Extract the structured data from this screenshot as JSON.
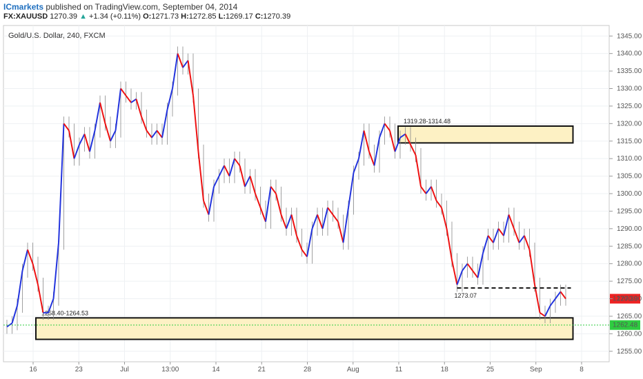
{
  "header": {
    "brand": "ICmarkets",
    "published": "published on TradingView.com, September 04, 2014",
    "symbol": "FX:XAUUSD",
    "last": "1270.39",
    "change": "+1.34 (+0.11%)",
    "o_label": "O:",
    "o_val": "1271.73",
    "h_label": "H:",
    "h_val": "1272.85",
    "l_label": "L:",
    "l_val": "1269.17",
    "c_label": "C:",
    "c_val": "1270.39"
  },
  "colors": {
    "up": "#2233dd",
    "down": "#ee1111",
    "zone_fill": "#fdf1c4",
    "price_tag": "#ee2222",
    "green_tag": "#2ecc40",
    "grid": "#eef0f3"
  },
  "chart_data": {
    "type": "line",
    "title": "Gold/U.S. Dollar, 240, FXCM",
    "x_tick_labels": [
      "16",
      "23",
      "Jul",
      "13:00",
      "14",
      "21",
      "28",
      "Aug",
      "11",
      "18",
      "25",
      "Sep",
      "8"
    ],
    "y_ticks": [
      1255,
      1260,
      1265,
      1270,
      1275,
      1280,
      1285,
      1290,
      1295,
      1300,
      1305,
      1310,
      1315,
      1320,
      1325,
      1330,
      1335,
      1340,
      1345
    ],
    "ylim": [
      1252,
      1348
    ],
    "series": [
      {
        "values": [
          1262,
          1263,
          1268,
          1278,
          1284,
          1280,
          1274,
          1266,
          1266,
          1270,
          1286,
          1320,
          1318,
          1310,
          1314,
          1317,
          1312,
          1318,
          1326,
          1320,
          1315,
          1318,
          1330,
          1328,
          1326,
          1327,
          1322,
          1318,
          1316,
          1318,
          1316,
          1324,
          1330,
          1340,
          1336,
          1338,
          1328,
          1312,
          1298,
          1294,
          1302,
          1305,
          1308,
          1305,
          1310,
          1308,
          1302,
          1305,
          1300,
          1296,
          1292,
          1302,
          1300,
          1294,
          1290,
          1294,
          1288,
          1284,
          1282,
          1290,
          1294,
          1290,
          1296,
          1294,
          1292,
          1286,
          1296,
          1306,
          1310,
          1318,
          1312,
          1308,
          1316,
          1320,
          1318,
          1312,
          1316,
          1317,
          1314,
          1311,
          1302,
          1300,
          1302,
          1298,
          1296,
          1290,
          1281,
          1274,
          1278,
          1280,
          1278,
          1276,
          1283,
          1288,
          1286,
          1290,
          1288,
          1294,
          1290,
          1286,
          1288,
          1284,
          1274,
          1266,
          1265,
          1268,
          1270,
          1272,
          1270
        ],
        "color_up": "#2233dd",
        "color_down": "#ee1111"
      }
    ],
    "current_price": "1270.39",
    "green_level": 1262.48,
    "green_label": "1262.48",
    "zones": [
      {
        "label": "1319.28-1314.48",
        "low": 1314.48,
        "high": 1319.28,
        "from": 76,
        "to": 109
      },
      {
        "label": "1258.40-1264.53",
        "low": 1258.4,
        "high": 1264.53,
        "from": 6,
        "to": 109
      }
    ],
    "support_line": {
      "value": 1273.07,
      "label": "1273.07",
      "from": 87,
      "to": 109
    },
    "grid": true
  }
}
